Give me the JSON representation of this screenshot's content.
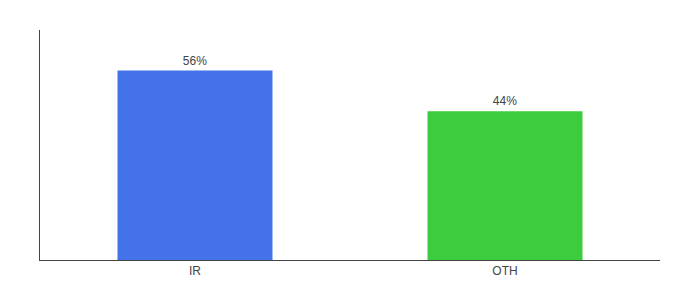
{
  "chart_data": {
    "type": "bar",
    "categories": [
      "IR",
      "OTH"
    ],
    "values": [
      56,
      44
    ],
    "value_labels": [
      "56%",
      "44%"
    ],
    "colors": [
      "#4472e8",
      "#3dcc3d"
    ],
    "ylim": [
      0,
      68
    ],
    "grid": false,
    "data_labels": true,
    "tick_labels": "x"
  }
}
